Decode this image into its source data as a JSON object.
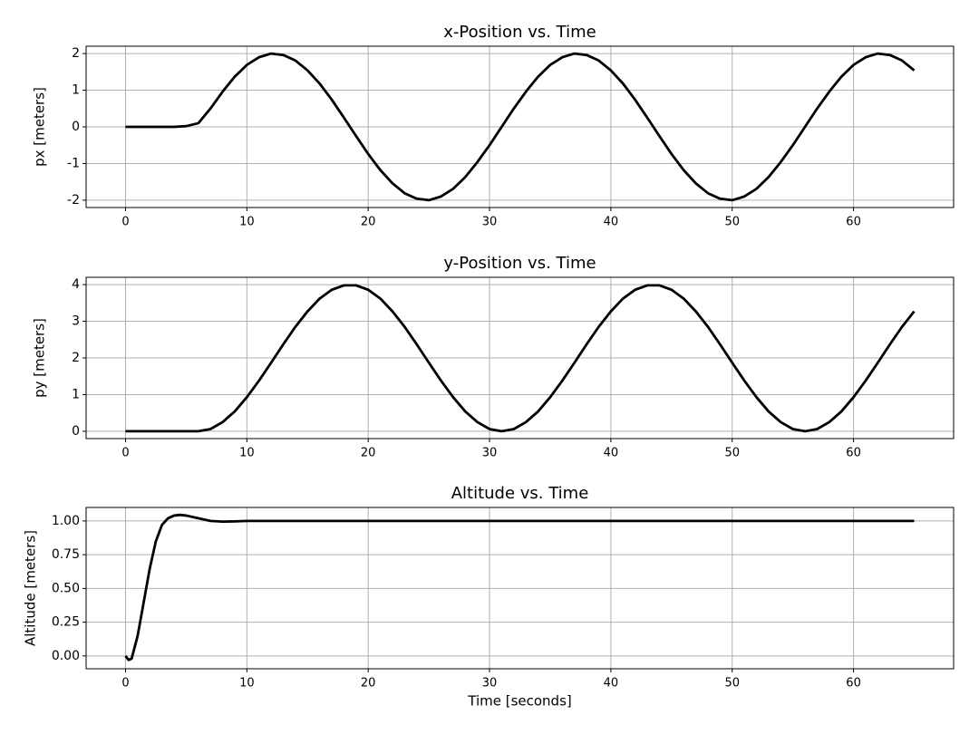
{
  "chart_data": [
    {
      "type": "line",
      "title": "x-Position vs. Time",
      "ylabel": "px [meters]",
      "x": [
        0,
        1,
        2,
        3,
        4,
        5,
        6,
        7,
        8,
        9,
        10,
        11,
        12,
        13,
        14,
        15,
        16,
        17,
        18,
        19,
        20,
        21,
        22,
        23,
        24,
        25,
        26,
        27,
        28,
        29,
        30,
        31,
        32,
        33,
        34,
        35,
        36,
        37,
        38,
        39,
        40,
        41,
        42,
        43,
        44,
        45,
        46,
        47,
        48,
        49,
        50,
        51,
        52,
        53,
        54,
        55,
        56,
        57,
        58,
        59,
        60,
        61,
        62,
        63,
        64,
        65
      ],
      "series": [
        {
          "name": "px",
          "color": "#000000",
          "values": [
            0,
            0,
            0,
            0,
            0,
            0.02,
            0.1,
            0.5,
            0.96,
            1.37,
            1.69,
            1.9,
            2.0,
            1.96,
            1.81,
            1.54,
            1.18,
            0.74,
            0.25,
            -0.25,
            -0.74,
            -1.18,
            -1.54,
            -1.81,
            -1.96,
            -2.0,
            -1.9,
            -1.69,
            -1.37,
            -0.96,
            -0.5,
            0,
            0.5,
            0.96,
            1.37,
            1.69,
            1.9,
            2.0,
            1.96,
            1.81,
            1.54,
            1.18,
            0.74,
            0.25,
            -0.25,
            -0.74,
            -1.18,
            -1.54,
            -1.81,
            -1.96,
            -2.0,
            -1.9,
            -1.69,
            -1.37,
            -0.96,
            -0.5,
            0,
            0.5,
            0.96,
            1.37,
            1.69,
            1.9,
            2.0,
            1.96,
            1.81,
            1.54
          ]
        }
      ],
      "xlim": [
        -3.25,
        68.25
      ],
      "xticks": [
        0,
        10,
        20,
        30,
        40,
        50,
        60
      ],
      "ylim": [
        -2.2,
        2.2
      ],
      "yticks": [
        -2,
        -1,
        0,
        1,
        2
      ],
      "grid": true
    },
    {
      "type": "line",
      "title": "y-Position vs. Time",
      "ylabel": "py [meters]",
      "x": [
        0,
        1,
        2,
        3,
        4,
        5,
        6,
        7,
        8,
        9,
        10,
        11,
        12,
        13,
        14,
        15,
        16,
        17,
        18,
        19,
        20,
        21,
        22,
        23,
        24,
        25,
        26,
        27,
        28,
        29,
        30,
        31,
        32,
        33,
        34,
        35,
        36,
        37,
        38,
        39,
        40,
        41,
        42,
        43,
        44,
        45,
        46,
        47,
        48,
        49,
        50,
        51,
        52,
        53,
        54,
        55,
        56,
        57,
        58,
        59,
        60,
        61,
        62,
        63,
        64,
        65
      ],
      "series": [
        {
          "name": "py",
          "color": "#000000",
          "values": [
            0,
            0,
            0,
            0,
            0,
            0,
            0,
            0.06,
            0.25,
            0.54,
            0.93,
            1.38,
            1.87,
            2.37,
            2.85,
            3.27,
            3.62,
            3.86,
            3.98,
            3.98,
            3.86,
            3.62,
            3.27,
            2.85,
            2.37,
            1.87,
            1.38,
            0.93,
            0.54,
            0.25,
            0.06,
            0,
            0.06,
            0.25,
            0.54,
            0.93,
            1.38,
            1.87,
            2.37,
            2.85,
            3.27,
            3.62,
            3.86,
            3.98,
            3.98,
            3.86,
            3.62,
            3.27,
            2.85,
            2.37,
            1.87,
            1.38,
            0.93,
            0.54,
            0.25,
            0.06,
            0,
            0.06,
            0.25,
            0.54,
            0.93,
            1.38,
            1.87,
            2.37,
            2.85,
            3.27
          ]
        }
      ],
      "xlim": [
        -3.25,
        68.25
      ],
      "xticks": [
        0,
        10,
        20,
        30,
        40,
        50,
        60
      ],
      "ylim": [
        -0.2,
        4.2
      ],
      "yticks": [
        0,
        1,
        2,
        3,
        4
      ],
      "grid": true
    },
    {
      "type": "line",
      "title": "Altitude vs. Time",
      "ylabel": "Altitude [meters]",
      "xlabel": "Time [seconds]",
      "x": [
        0,
        0.25,
        0.5,
        1,
        1.5,
        2,
        2.5,
        3,
        3.5,
        4,
        4.5,
        5,
        6,
        7,
        8,
        9,
        10,
        15,
        20,
        25,
        30,
        35,
        40,
        45,
        50,
        55,
        60,
        65
      ],
      "series": [
        {
          "name": "altitude",
          "color": "#000000",
          "values": [
            0,
            -0.03,
            -0.02,
            0.15,
            0.4,
            0.65,
            0.85,
            0.97,
            1.02,
            1.04,
            1.045,
            1.04,
            1.02,
            1.0,
            0.995,
            0.997,
            1.0,
            1.0,
            1.0,
            1.0,
            1.0,
            1.0,
            1.0,
            1.0,
            1.0,
            1.0,
            1.0,
            1.0
          ]
        }
      ],
      "xlim": [
        -3.25,
        68.25
      ],
      "xticks": [
        0,
        10,
        20,
        30,
        40,
        50,
        60
      ],
      "ylim": [
        -0.095,
        1.1
      ],
      "yticks": [
        {
          "value": 0,
          "label": "0.00"
        },
        {
          "value": 0.25,
          "label": "0.25"
        },
        {
          "value": 0.5,
          "label": "0.50"
        },
        {
          "value": 0.75,
          "label": "0.75"
        },
        {
          "value": 1,
          "label": "1.00"
        }
      ],
      "grid": true
    }
  ]
}
